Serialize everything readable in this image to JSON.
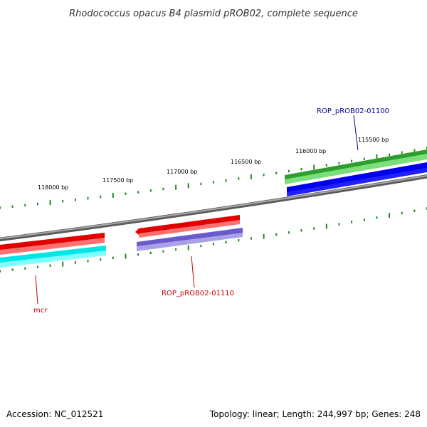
{
  "title": "Rhodococcus opacus B4 plasmid pROB02, complete sequence",
  "footer": {
    "accession": "Accession: NC_012521",
    "summary": "Topology: linear; Length: 244,997 bp; Genes: 248"
  },
  "colors": {
    "backbone": "#808080",
    "tick": "#228b22",
    "gene_label_blue": "#00008b",
    "gene_label_red": "#cc0000"
  },
  "ticks": {
    "labels": [
      "118000 bp",
      "117500 bp",
      "117000 bp",
      "116500 bp",
      "116000 bp",
      "115500 bp"
    ]
  },
  "features": [
    {
      "name": "mcr-gene",
      "strand": "reverse",
      "color": "#ff0000"
    },
    {
      "name": "mcr-cds",
      "strand": "reverse",
      "color": "#00ffff"
    },
    {
      "name": "ROP_pROB02-01110-gene",
      "strand": "reverse",
      "color": "#ff0000"
    },
    {
      "name": "ROP_pROB02-01110-cds",
      "strand": "reverse",
      "color": "#7b68cc"
    },
    {
      "name": "ROP_pROB02-01100-gene",
      "strand": "forward",
      "color": "#32cd32"
    },
    {
      "name": "ROP_pROB02-01100-cds",
      "strand": "forward",
      "color": "#0000ff"
    }
  ],
  "gene_labels": [
    {
      "text": "ROP_pROB02-01100",
      "color": "#00008b"
    },
    {
      "text": "ROP_pROB02-01110",
      "color": "#cc0000"
    },
    {
      "text": "mcr",
      "color": "#cc0000"
    }
  ]
}
